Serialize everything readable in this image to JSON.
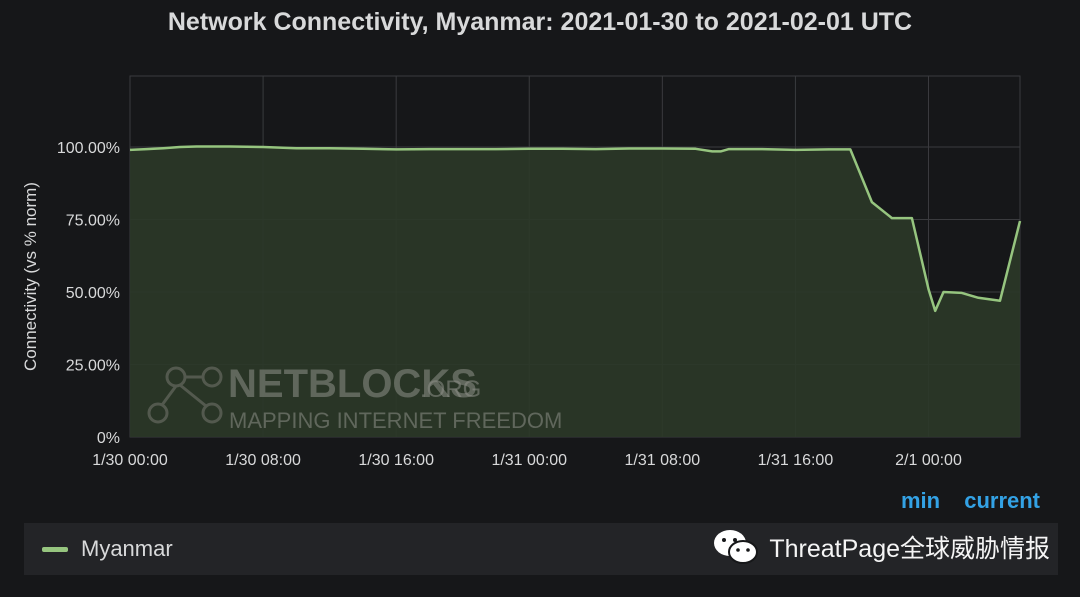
{
  "title": "Network Connectivity, Myanmar: 2021-01-30 to 2021-02-01 UTC",
  "watermark": {
    "brand": "NETBLOCKS",
    "suffix": ".ORG",
    "tagline": "MAPPING INTERNET FREEDOM"
  },
  "legend": {
    "headers": [
      "min",
      "current"
    ],
    "series_name": "Myanmar"
  },
  "overlay": {
    "text": "ThreatPage全球威胁情报"
  },
  "colors": {
    "background": "#161719",
    "line": "#96c57f",
    "fill": "#2b3928",
    "grid": "#3a3b3e",
    "legend_header": "#33a2e5"
  },
  "chart_data": {
    "type": "area",
    "title": "Network Connectivity, Myanmar: 2021-01-30 to 2021-02-01 UTC",
    "xlabel": "",
    "ylabel": "Connectivity (vs % norm)",
    "x_unit": "hours since 1/30 00:00 UTC",
    "x_range": [
      0,
      53.5
    ],
    "ylim": [
      0,
      100
    ],
    "yticks": [
      0,
      25,
      50,
      75,
      100
    ],
    "ytick_labels": [
      "0%",
      "25.00%",
      "50.00%",
      "75.00%",
      "100.00%"
    ],
    "xticks": [
      0,
      8,
      16,
      24,
      32,
      40,
      48
    ],
    "xtick_labels": [
      "1/30 00:00",
      "1/30 08:00",
      "1/30 16:00",
      "1/31 00:00",
      "1/31 08:00",
      "1/31 16:00",
      "2/1 00:00"
    ],
    "grid": true,
    "series": [
      {
        "name": "Myanmar",
        "x": [
          0,
          1,
          2,
          3,
          4,
          6,
          8,
          10,
          12,
          14,
          16,
          18,
          20,
          22,
          24,
          26,
          28,
          30,
          32,
          34,
          35,
          35.5,
          36,
          38,
          40,
          42,
          43.3,
          44.6,
          45.8,
          47,
          48,
          48.4,
          48.9,
          50,
          51,
          52.3,
          53.5
        ],
        "y": [
          99.0,
          99.3,
          99.6,
          100.0,
          100.2,
          100.2,
          100.0,
          99.6,
          99.6,
          99.4,
          99.2,
          99.3,
          99.3,
          99.3,
          99.4,
          99.4,
          99.3,
          99.5,
          99.5,
          99.4,
          98.5,
          98.5,
          99.3,
          99.3,
          99.0,
          99.2,
          99.2,
          81.0,
          75.5,
          75.5,
          51.0,
          43.5,
          50.0,
          49.7,
          48.0,
          47.0,
          74.5
        ]
      }
    ]
  }
}
